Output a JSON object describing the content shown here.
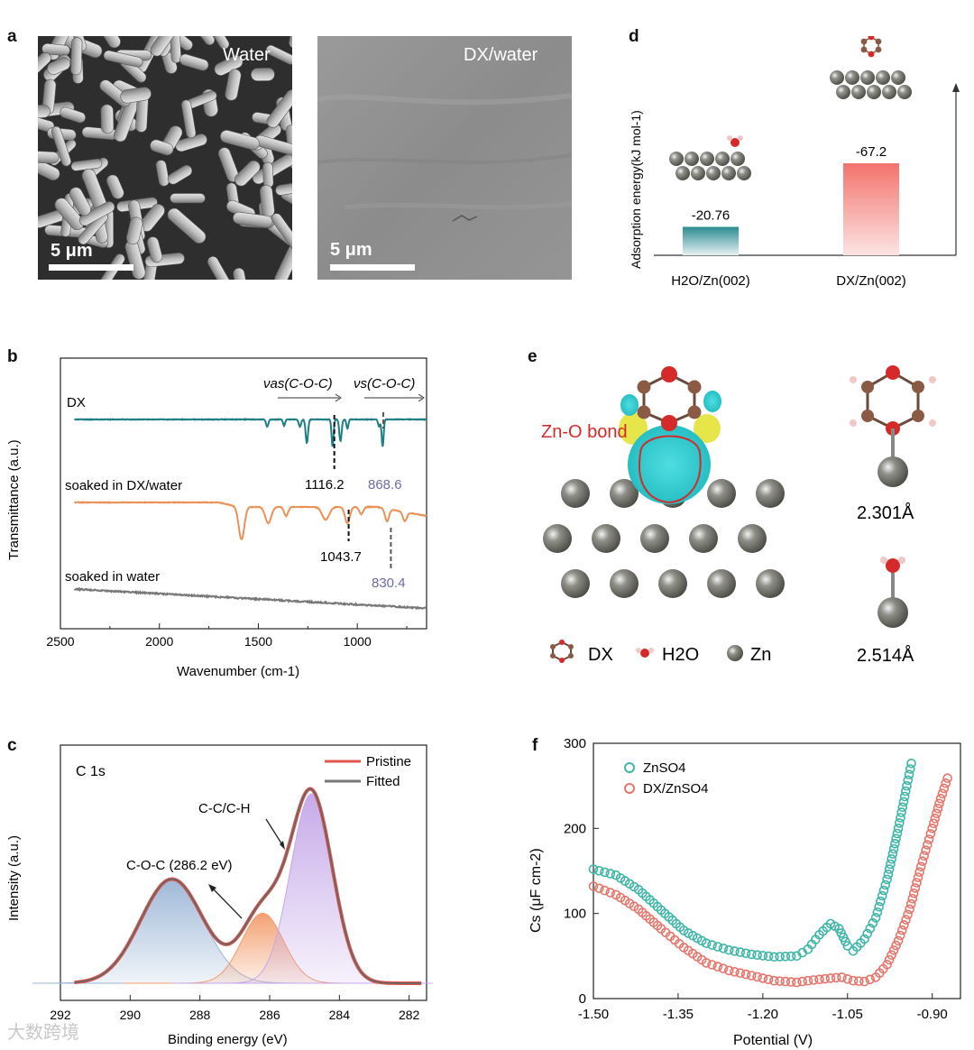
{
  "panel_labels": {
    "a": "a",
    "b": "b",
    "c": "c",
    "d": "d",
    "e": "e",
    "f": "f"
  },
  "panel_a": {
    "left_label": "Water",
    "right_label": "DX/water",
    "left_scalebar": "5 μm",
    "right_scalebar": "5 μm"
  },
  "watermark": "大数跨境",
  "chart_data": [
    {
      "id": "d",
      "type": "bar",
      "ylabel": "Adsorption energy(kJ mol-1)",
      "categories": [
        "H2O/Zn(002)",
        "DX/Zn(002)"
      ],
      "values": [
        -20.76,
        -67.2
      ],
      "value_labels": [
        "-20.76",
        "-67.2"
      ],
      "bar_colors": [
        "#2b8b92",
        "#f4736d"
      ]
    },
    {
      "id": "b",
      "type": "line",
      "xlabel": "Wavenumber (cm-1)",
      "ylabel": "Transmittance (a.u.)",
      "xlim": [
        2500,
        650
      ],
      "xticks": [
        2500,
        2000,
        1500,
        1000
      ],
      "series": [
        {
          "name": "DX",
          "color": "#1e7e86"
        },
        {
          "name": "soaked in DX/water",
          "color": "#e99157"
        },
        {
          "name": "soaked in water",
          "color": "#777777"
        }
      ],
      "annotations": [
        "νas(C-O-C)",
        "νs(C-O-C)",
        "1116.2",
        "868.6",
        "1043.7",
        "830.4"
      ],
      "peak_positions": [
        1116.2,
        868.6,
        1043.7,
        830.4
      ]
    },
    {
      "id": "c",
      "type": "area",
      "title": "C 1s",
      "xlabel": "Binding energy (eV)",
      "ylabel": "Intensity (a.u.)",
      "xlim": [
        292,
        281.5
      ],
      "xticks": [
        292,
        290,
        288,
        286,
        284,
        282
      ],
      "legend": [
        "Pristine",
        "Fitted"
      ],
      "peaks": [
        {
          "center": 288.8,
          "height": 0.55,
          "width": 0.9,
          "color": "#9ab5d6"
        },
        {
          "center": 286.2,
          "height": 0.37,
          "width": 0.6,
          "color": "#f39c6b"
        },
        {
          "center": 284.8,
          "height": 1.0,
          "width": 0.6,
          "color": "#c4a6e8"
        }
      ],
      "annotations": [
        "C-C/C-H",
        "C-O-C (286.2 eV)"
      ]
    },
    {
      "id": "e",
      "type": "table",
      "legend": [
        "DX",
        "H2O",
        "Zn"
      ],
      "labels": [
        "Zn-O bond",
        "2.301Å",
        "2.514Å"
      ]
    },
    {
      "id": "f",
      "type": "scatter",
      "xlabel": "Potential (V)",
      "ylabel": "Cs (μF cm-2)",
      "xlim": [
        -1.5,
        -0.85
      ],
      "ylim": [
        0,
        300
      ],
      "xticks": [
        -1.5,
        -1.35,
        -1.2,
        -1.05,
        -0.9
      ],
      "xtick_labels": [
        "-1.50",
        "-1.35",
        "-1.20",
        "-1.05",
        "-0.90"
      ],
      "yticks": [
        0,
        100,
        200,
        300
      ],
      "series": [
        {
          "name": "ZnSO4",
          "color": "#3fb5a8",
          "points": [
            [
              -1.5,
              152
            ],
            [
              -1.46,
              145
            ],
            [
              -1.42,
              128
            ],
            [
              -1.38,
              104
            ],
            [
              -1.34,
              80
            ],
            [
              -1.3,
              65
            ],
            [
              -1.26,
              57
            ],
            [
              -1.22,
              52
            ],
            [
              -1.18,
              49
            ],
            [
              -1.14,
              50
            ],
            [
              -1.12,
              58
            ],
            [
              -1.1,
              75
            ],
            [
              -1.08,
              88
            ],
            [
              -1.065,
              82
            ],
            [
              -1.05,
              62
            ],
            [
              -1.04,
              56
            ],
            [
              -1.02,
              70
            ],
            [
              -1.0,
              95
            ],
            [
              -0.98,
              140
            ],
            [
              -0.96,
              200
            ],
            [
              -0.945,
              250
            ],
            [
              -0.935,
              283
            ]
          ]
        },
        {
          "name": "DX/ZnSO4",
          "color": "#e5756a",
          "points": [
            [
              -1.5,
              132
            ],
            [
              -1.46,
              122
            ],
            [
              -1.42,
              105
            ],
            [
              -1.38,
              82
            ],
            [
              -1.34,
              60
            ],
            [
              -1.3,
              42
            ],
            [
              -1.26,
              33
            ],
            [
              -1.22,
              27
            ],
            [
              -1.18,
              21
            ],
            [
              -1.14,
              19
            ],
            [
              -1.12,
              21
            ],
            [
              -1.08,
              24
            ],
            [
              -1.06,
              25
            ],
            [
              -1.04,
              21
            ],
            [
              -1.02,
              20
            ],
            [
              -1.0,
              25
            ],
            [
              -0.98,
              40
            ],
            [
              -0.96,
              68
            ],
            [
              -0.94,
              105
            ],
            [
              -0.92,
              155
            ],
            [
              -0.9,
              200
            ],
            [
              -0.885,
              235
            ],
            [
              -0.87,
              265
            ]
          ]
        }
      ]
    }
  ]
}
